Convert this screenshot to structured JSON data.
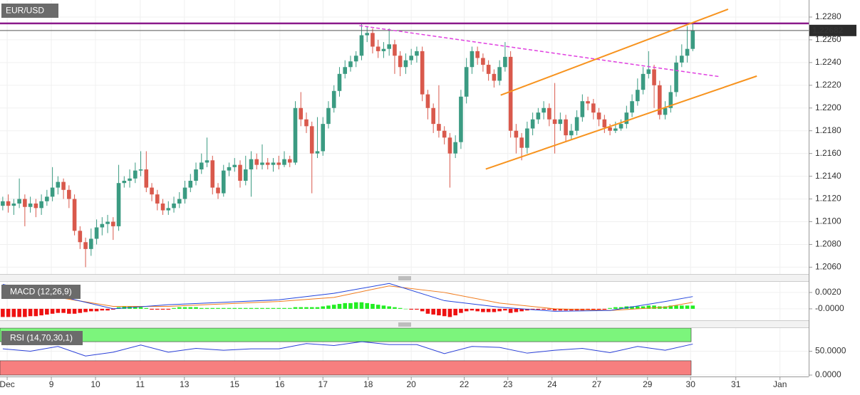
{
  "chart_data": {
    "type": "candlestick",
    "title": "EUR/USD",
    "colors": {
      "up": "#3b9b82",
      "down": "#d9594c"
    },
    "xlim": [
      -0.5,
      146
    ],
    "xticks": [
      {
        "value": 0.8,
        "label": "Dec"
      },
      {
        "value": 8.8,
        "label": "9"
      },
      {
        "value": 16.8,
        "label": "10"
      },
      {
        "value": 24.9,
        "label": "11"
      },
      {
        "value": 32.9,
        "label": "13"
      },
      {
        "value": 42,
        "label": "15"
      },
      {
        "value": 50.2,
        "label": "16"
      },
      {
        "value": 58,
        "label": "17"
      },
      {
        "value": 66.2,
        "label": "18"
      },
      {
        "value": 74,
        "label": "20"
      },
      {
        "value": 83.6,
        "label": "22"
      },
      {
        "value": 91.5,
        "label": "23"
      },
      {
        "value": 99.5,
        "label": "24"
      },
      {
        "value": 107.6,
        "label": "27"
      },
      {
        "value": 116.8,
        "label": "29"
      },
      {
        "value": 124.6,
        "label": "30"
      },
      {
        "value": 132.8,
        "label": "31"
      },
      {
        "value": 140.8,
        "label": "Jan"
      }
    ],
    "ylim": [
      1.2054,
      1.2295
    ],
    "yticks": [
      {
        "value": 1.206,
        "label": "1.2060"
      },
      {
        "value": 1.208,
        "label": "1.2080"
      },
      {
        "value": 1.21,
        "label": "1.2100"
      },
      {
        "value": 1.212,
        "label": "1.2120"
      },
      {
        "value": 1.214,
        "label": "1.2140"
      },
      {
        "value": 1.216,
        "label": "1.2160"
      },
      {
        "value": 1.218,
        "label": "1.2180"
      },
      {
        "value": 1.22,
        "label": "1.2200"
      },
      {
        "value": 1.222,
        "label": "1.2220"
      },
      {
        "value": 1.224,
        "label": "1.2240"
      },
      {
        "value": 1.226,
        "label": "1.2260"
      },
      {
        "value": 1.228,
        "label": "1.2280"
      }
    ],
    "last_price": 1.22682,
    "last_price_color": "#555555",
    "levels": [
      {
        "value": 1.22744,
        "color": "#8b1a8b"
      }
    ],
    "trendlines": [
      {
        "color": "#e040e0",
        "dashed": true,
        "points": [
          [
            64.6,
            1.22725
          ],
          [
            130,
            1.22275
          ]
        ]
      },
      {
        "color": "#f7931e",
        "dashed": false,
        "points": [
          [
            90.2,
            1.22113
          ],
          [
            131.4,
            1.22869
          ]
        ]
      },
      {
        "color": "#f7931e",
        "dashed": false,
        "points": [
          [
            87.5,
            1.21463
          ],
          [
            136.6,
            1.22281
          ]
        ]
      }
    ],
    "candles": [
      [
        1.2114,
        1.2122,
        1.211,
        1.2118
      ],
      [
        1.2118,
        1.2124,
        1.2108,
        1.2114
      ],
      [
        1.2114,
        1.212,
        1.2106,
        1.2116
      ],
      [
        1.2116,
        1.2138,
        1.2112,
        1.212
      ],
      [
        1.212,
        1.2124,
        1.2096,
        1.2113
      ],
      [
        1.2113,
        1.2122,
        1.2108,
        1.2116
      ],
      [
        1.2116,
        1.212,
        1.2104,
        1.2112
      ],
      [
        1.2112,
        1.2124,
        1.2106,
        1.2118
      ],
      [
        1.2118,
        1.2128,
        1.2114,
        1.2122
      ],
      [
        1.2122,
        1.2148,
        1.2118,
        1.213
      ],
      [
        1.213,
        1.214,
        1.2124,
        1.2135
      ],
      [
        1.2135,
        1.2138,
        1.212,
        1.2128
      ],
      [
        1.2128,
        1.2132,
        1.2112,
        1.212
      ],
      [
        1.212,
        1.2124,
        1.2088,
        1.2092
      ],
      [
        1.2092,
        1.2096,
        1.2076,
        1.2082
      ],
      [
        1.2082,
        1.2086,
        1.206,
        1.2076
      ],
      [
        1.2076,
        1.2094,
        1.207,
        1.2085
      ],
      [
        1.2085,
        1.2102,
        1.208,
        1.2095
      ],
      [
        1.2095,
        1.2104,
        1.2088,
        1.2098
      ],
      [
        1.2098,
        1.2106,
        1.209,
        1.21
      ],
      [
        1.21,
        1.2104,
        1.2084,
        1.2096
      ],
      [
        1.2096,
        1.215,
        1.2092,
        1.2134
      ],
      [
        1.2134,
        1.214,
        1.213,
        1.2136
      ],
      [
        1.2136,
        1.2146,
        1.213,
        1.2138
      ],
      [
        1.2138,
        1.2152,
        1.2134,
        1.2145
      ],
      [
        1.2145,
        1.2162,
        1.214,
        1.2146
      ],
      [
        1.2146,
        1.2162,
        1.2126,
        1.213
      ],
      [
        1.213,
        1.2134,
        1.2118,
        1.2124
      ],
      [
        1.2124,
        1.2128,
        1.211,
        1.2116
      ],
      [
        1.2116,
        1.212,
        1.2106,
        1.211
      ],
      [
        1.211,
        1.2118,
        1.2106,
        1.2112
      ],
      [
        1.2112,
        1.2122,
        1.2108,
        1.2116
      ],
      [
        1.2116,
        1.2126,
        1.2112,
        1.212
      ],
      [
        1.212,
        1.2136,
        1.2116,
        1.213
      ],
      [
        1.213,
        1.2142,
        1.2126,
        1.2136
      ],
      [
        1.2136,
        1.2152,
        1.2132,
        1.2146
      ],
      [
        1.2146,
        1.216,
        1.2142,
        1.2152
      ],
      [
        1.2152,
        1.2174,
        1.2148,
        1.2154
      ],
      [
        1.2154,
        1.2158,
        1.2124,
        1.213
      ],
      [
        1.213,
        1.2134,
        1.212,
        1.2125
      ],
      [
        1.2125,
        1.215,
        1.2122,
        1.2145
      ],
      [
        1.2145,
        1.2152,
        1.214,
        1.2148
      ],
      [
        1.2148,
        1.2156,
        1.2144,
        1.215
      ],
      [
        1.215,
        1.2154,
        1.213,
        1.2136
      ],
      [
        1.2136,
        1.2158,
        1.2132,
        1.2146
      ],
      [
        1.2146,
        1.2162,
        1.2122,
        1.2155
      ],
      [
        1.2155,
        1.216,
        1.2146,
        1.215
      ],
      [
        1.215,
        1.2168,
        1.2146,
        1.2152
      ],
      [
        1.2152,
        1.2156,
        1.2146,
        1.215
      ],
      [
        1.215,
        1.2156,
        1.2144,
        1.2152
      ],
      [
        1.2152,
        1.2158,
        1.2146,
        1.215
      ],
      [
        1.215,
        1.2162,
        1.2148,
        1.2155
      ],
      [
        1.2155,
        1.2158,
        1.2148,
        1.2152
      ],
      [
        1.2152,
        1.2206,
        1.215,
        1.22
      ],
      [
        1.22,
        1.2214,
        1.2184,
        1.219
      ],
      [
        1.219,
        1.2196,
        1.2178,
        1.2184
      ],
      [
        1.2184,
        1.2188,
        1.2125,
        1.216
      ],
      [
        1.216,
        1.2192,
        1.2156,
        1.2162
      ],
      [
        1.2162,
        1.2192,
        1.2158,
        1.2186
      ],
      [
        1.2186,
        1.2206,
        1.2182,
        1.22
      ],
      [
        1.22,
        1.222,
        1.2196,
        1.2215
      ],
      [
        1.2215,
        1.2236,
        1.221,
        1.223
      ],
      [
        1.223,
        1.2242,
        1.2226,
        1.2236
      ],
      [
        1.2236,
        1.2246,
        1.2232,
        1.2241
      ],
      [
        1.2241,
        1.225,
        1.2236,
        1.2246
      ],
      [
        1.2246,
        1.2274,
        1.2242,
        1.2264
      ],
      [
        1.2264,
        1.2272,
        1.2258,
        1.2266
      ],
      [
        1.2266,
        1.227,
        1.2248,
        1.2254
      ],
      [
        1.2254,
        1.226,
        1.2244,
        1.225
      ],
      [
        1.225,
        1.2258,
        1.2244,
        1.2252
      ],
      [
        1.2252,
        1.227,
        1.2246,
        1.2256
      ],
      [
        1.2256,
        1.226,
        1.223,
        1.2246
      ],
      [
        1.2246,
        1.225,
        1.2228,
        1.2236
      ],
      [
        1.2236,
        1.2248,
        1.223,
        1.2242
      ],
      [
        1.2242,
        1.2252,
        1.2238,
        1.2246
      ],
      [
        1.2246,
        1.2254,
        1.224,
        1.225
      ],
      [
        1.225,
        1.2254,
        1.2206,
        1.2212
      ],
      [
        1.2212,
        1.2216,
        1.219,
        1.22
      ],
      [
        1.22,
        1.2204,
        1.2178,
        1.2186
      ],
      [
        1.2186,
        1.222,
        1.2174,
        1.218
      ],
      [
        1.218,
        1.2184,
        1.2168,
        1.2174
      ],
      [
        1.2174,
        1.2178,
        1.213,
        1.216
      ],
      [
        1.216,
        1.2176,
        1.2156,
        1.217
      ],
      [
        1.217,
        1.2216,
        1.2164,
        1.221
      ],
      [
        1.221,
        1.2244,
        1.2204,
        1.2236
      ],
      [
        1.2236,
        1.2254,
        1.223,
        1.225
      ],
      [
        1.225,
        1.2254,
        1.2238,
        1.2244
      ],
      [
        1.2244,
        1.2248,
        1.2232,
        1.2238
      ],
      [
        1.2238,
        1.2242,
        1.2224,
        1.223
      ],
      [
        1.223,
        1.2234,
        1.2218,
        1.2224
      ],
      [
        1.2224,
        1.2242,
        1.222,
        1.2236
      ],
      [
        1.2236,
        1.2258,
        1.2232,
        1.2245
      ],
      [
        1.2245,
        1.225,
        1.2174,
        1.218
      ],
      [
        1.218,
        1.2186,
        1.216,
        1.2174
      ],
      [
        1.2174,
        1.2178,
        1.2154,
        1.2165
      ],
      [
        1.2165,
        1.2188,
        1.216,
        1.2182
      ],
      [
        1.2182,
        1.2196,
        1.2176,
        1.219
      ],
      [
        1.219,
        1.22,
        1.2186,
        1.2196
      ],
      [
        1.2196,
        1.2206,
        1.219,
        1.22
      ],
      [
        1.22,
        1.2204,
        1.2184,
        1.219
      ],
      [
        1.219,
        1.2222,
        1.216,
        1.2186
      ],
      [
        1.2186,
        1.2196,
        1.218,
        1.219
      ],
      [
        1.219,
        1.2194,
        1.217,
        1.2176
      ],
      [
        1.2176,
        1.2186,
        1.2172,
        1.218
      ],
      [
        1.218,
        1.2198,
        1.2176,
        1.2192
      ],
      [
        1.2192,
        1.2212,
        1.2188,
        1.2206
      ],
      [
        1.2206,
        1.221,
        1.2198,
        1.2204
      ],
      [
        1.2204,
        1.2208,
        1.219,
        1.2196
      ],
      [
        1.2196,
        1.22,
        1.2184,
        1.219
      ],
      [
        1.219,
        1.2194,
        1.2178,
        1.2183
      ],
      [
        1.2183,
        1.2186,
        1.2176,
        1.218
      ],
      [
        1.218,
        1.2188,
        1.2178,
        1.2182
      ],
      [
        1.2182,
        1.219,
        1.218,
        1.2186
      ],
      [
        1.2186,
        1.2202,
        1.2182,
        1.2196
      ],
      [
        1.2196,
        1.2212,
        1.2192,
        1.2206
      ],
      [
        1.2206,
        1.2226,
        1.2202,
        1.2216
      ],
      [
        1.2216,
        1.2236,
        1.2212,
        1.223
      ],
      [
        1.223,
        1.225,
        1.2226,
        1.2234
      ],
      [
        1.2234,
        1.2238,
        1.22,
        1.222
      ],
      [
        1.222,
        1.2224,
        1.219,
        1.2194
      ],
      [
        1.2194,
        1.2206,
        1.219,
        1.22
      ],
      [
        1.22,
        1.222,
        1.2196,
        1.2214
      ],
      [
        1.2214,
        1.2246,
        1.221,
        1.224
      ],
      [
        1.224,
        1.2256,
        1.2236,
        1.2246
      ],
      [
        1.2246,
        1.2272,
        1.224,
        1.2252
      ],
      [
        1.2252,
        1.2275,
        1.225,
        1.2268
      ]
    ],
    "macd": {
      "label": "MACD (12,26,9)",
      "ylim": [
        -0.0014,
        0.0033
      ],
      "yticks": [
        {
          "value": 0.002,
          "label": "0.0020"
        },
        {
          "value": 0,
          "label": "-0.0000"
        }
      ],
      "x": [
        0,
        10,
        20,
        30,
        40,
        50,
        60,
        70,
        80,
        90,
        100,
        110,
        120,
        125
      ],
      "macd": [
        0.003,
        0.0016,
        0.0,
        0.0005,
        0.0008,
        0.0011,
        0.0019,
        0.0031,
        0.001,
        0.0002,
        -0.0003,
        -0.0002,
        0.0009,
        0.0015
      ],
      "signal": [
        0.0026,
        0.0014,
        0.0003,
        0.0003,
        0.0006,
        0.0009,
        0.0014,
        0.0028,
        0.002,
        0.0007,
        0.0,
        -0.0002,
        0.0002,
        0.0008
      ],
      "macd_color": "#2244dd",
      "signal_color": "#f07b1c",
      "histogram": [
        -0.001,
        -0.001,
        -0.001,
        -0.001,
        -0.001,
        -0.0009,
        -0.0009,
        -0.0008,
        -0.0007,
        -0.0006,
        -0.0005,
        -0.0005,
        -0.0006,
        -0.0006,
        -0.0005,
        -0.0004,
        -0.0003,
        -0.0003,
        -0.0002,
        -0.0002,
        -0.0001,
        0.0002,
        0.0003,
        0.0003,
        0.0003,
        0.0002,
        0.0001,
        -0.0001,
        -0.0001,
        -0.0001,
        -0.0001,
        0.0001,
        0.0002,
        0.0002,
        0.0002,
        0.0002,
        0.0001,
        0.0001,
        0.0001,
        0.0001,
        0.0001,
        0.0001,
        0.0001,
        0.0001,
        0.0001,
        0.0001,
        0.0001,
        0.0001,
        0.0001,
        0.0001,
        0.0001,
        0.0001,
        0.0001,
        0.0002,
        0.0002,
        0.0002,
        0.0002,
        0.0002,
        0.0003,
        0.0004,
        0.0005,
        0.0006,
        0.0007,
        0.0007,
        0.0008,
        0.0008,
        0.0007,
        0.0006,
        0.0005,
        0.0004,
        0.0003,
        0.0002,
        0.0001,
        0.0,
        -0.0001,
        -0.0001,
        -0.0003,
        -0.0006,
        -0.0007,
        -0.0008,
        -0.0009,
        -0.001,
        -0.0008,
        -0.0005,
        -0.0003,
        -0.0002,
        -0.0003,
        -0.0004,
        -0.0004,
        -0.0004,
        -0.0003,
        -0.0002,
        -0.0005,
        -0.0004,
        -0.0003,
        -0.0002,
        -0.0001,
        -0.0001,
        -0.0001,
        -0.0001,
        -0.0002,
        -0.0002,
        -0.0002,
        -0.0002,
        -0.0002,
        -0.0002,
        -0.0001,
        -0.0001,
        -0.0001,
        -0.0001,
        0.0001,
        0.0002,
        0.0002,
        0.0003,
        0.0003,
        0.0003,
        0.0003,
        0.0004,
        0.0004,
        0.0003,
        0.0003,
        0.0004,
        0.0004,
        0.0004,
        0.0004,
        0.0004
      ],
      "histogram_colors": {
        "positive": "#22ee22",
        "negative": "#ee1111"
      }
    },
    "rsi": {
      "label": "RSI (14,70,30,1)",
      "ylim": [
        0,
        98.5
      ],
      "yticks": [
        {
          "value": 50,
          "label": "50.0000"
        },
        {
          "value": 0,
          "label": "0.0000"
        }
      ],
      "upper": 70,
      "lower": 30,
      "upper_color": "#7cf57c",
      "lower_color": "#f77f7f",
      "color": "#2a3fd8",
      "x": [
        0,
        5,
        10,
        15,
        20,
        25,
        30,
        35,
        40,
        45,
        50,
        55,
        60,
        65,
        70,
        75,
        80,
        85,
        90,
        95,
        100,
        105,
        110,
        115,
        120,
        125
      ],
      "values": [
        55,
        50,
        60,
        40,
        48,
        63,
        48,
        56,
        52,
        55,
        55,
        66,
        62,
        70,
        64,
        64,
        45,
        60,
        58,
        46,
        52,
        56,
        47,
        60,
        52,
        65
      ]
    }
  }
}
